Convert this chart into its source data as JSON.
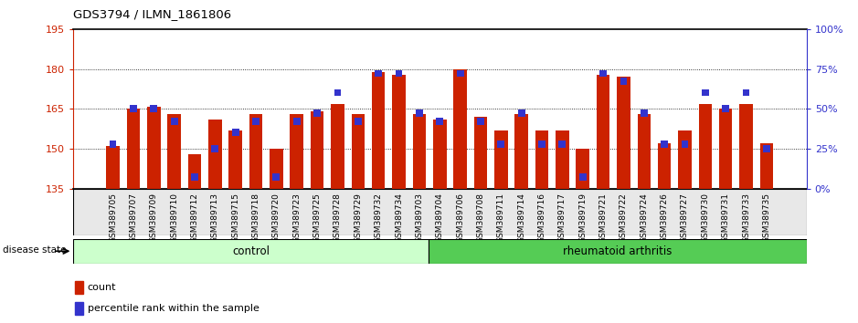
{
  "title": "GDS3794 / ILMN_1861806",
  "samples": [
    "GSM389705",
    "GSM389707",
    "GSM389709",
    "GSM389710",
    "GSM389712",
    "GSM389713",
    "GSM389715",
    "GSM389718",
    "GSM389720",
    "GSM389723",
    "GSM389725",
    "GSM389728",
    "GSM389729",
    "GSM389732",
    "GSM389734",
    "GSM389703",
    "GSM389704",
    "GSM389706",
    "GSM389708",
    "GSM389711",
    "GSM389714",
    "GSM389716",
    "GSM389717",
    "GSM389719",
    "GSM389721",
    "GSM389722",
    "GSM389724",
    "GSM389726",
    "GSM389727",
    "GSM389730",
    "GSM389731",
    "GSM389733",
    "GSM389735"
  ],
  "counts": [
    151,
    165,
    166,
    163,
    148,
    161,
    157,
    163,
    150,
    163,
    164,
    167,
    163,
    179,
    178,
    163,
    161,
    180,
    162,
    157,
    163,
    157,
    157,
    150,
    178,
    177,
    163,
    152,
    157,
    167,
    165,
    167,
    152
  ],
  "percentiles": [
    28,
    50,
    50,
    42,
    7,
    25,
    35,
    42,
    7,
    42,
    47,
    60,
    42,
    72,
    72,
    47,
    42,
    72,
    42,
    28,
    47,
    28,
    28,
    7,
    72,
    67,
    47,
    28,
    28,
    60,
    50,
    60,
    25
  ],
  "control_count": 16,
  "rheumatoid_count": 17,
  "control_label": "control",
  "rheumatoid_label": "rheumatoid arthritis",
  "disease_state_label": "disease state",
  "ylim_left": [
    135,
    195
  ],
  "ylim_right": [
    0,
    100
  ],
  "yticks_left": [
    135,
    150,
    165,
    180,
    195
  ],
  "yticks_right": [
    0,
    25,
    50,
    75,
    100
  ],
  "bar_color": "#cc2200",
  "percentile_color": "#3333cc",
  "control_color": "#ccffcc",
  "rheumatoid_color": "#55cc55",
  "tick_label_color_left": "#cc2200",
  "tick_label_color_right": "#3333cc",
  "base_value": 135,
  "bar_width": 0.65,
  "percentile_bar_width": 0.35
}
